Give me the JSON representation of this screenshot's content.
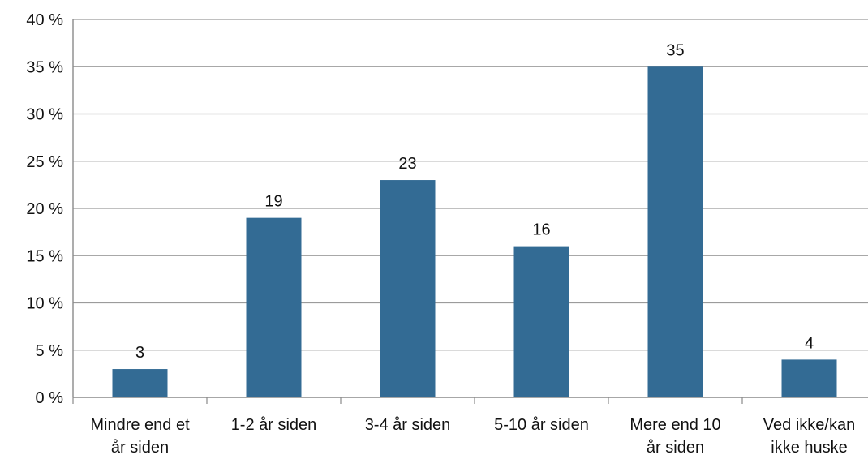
{
  "chart_data": {
    "type": "bar",
    "title": "",
    "xlabel": "",
    "ylabel": "",
    "categories": [
      [
        "Mindre end et",
        "år siden"
      ],
      [
        "1-2 år siden"
      ],
      [
        "3-4 år siden"
      ],
      [
        "5-10 år siden"
      ],
      [
        "Mere end 10",
        "år siden"
      ],
      [
        "Ved ikke/kan",
        "ikke huske"
      ]
    ],
    "values": [
      3,
      19,
      23,
      16,
      35,
      4
    ],
    "data_labels": [
      "3",
      "19",
      "23",
      "16",
      "35",
      "4"
    ],
    "ylim": [
      0,
      40
    ],
    "yticks": [
      0,
      5,
      10,
      15,
      20,
      25,
      30,
      35,
      40
    ],
    "ytick_labels": [
      "0 %",
      "5 %",
      "10 %",
      "15 %",
      "20 %",
      "25 %",
      "30 %",
      "35 %",
      "40 %"
    ],
    "grid": true,
    "legend": "none",
    "colors": {
      "bar": "#336b94",
      "grid": "#9b9b9b",
      "axis": "#8a8a8a",
      "text": "#111111"
    }
  }
}
